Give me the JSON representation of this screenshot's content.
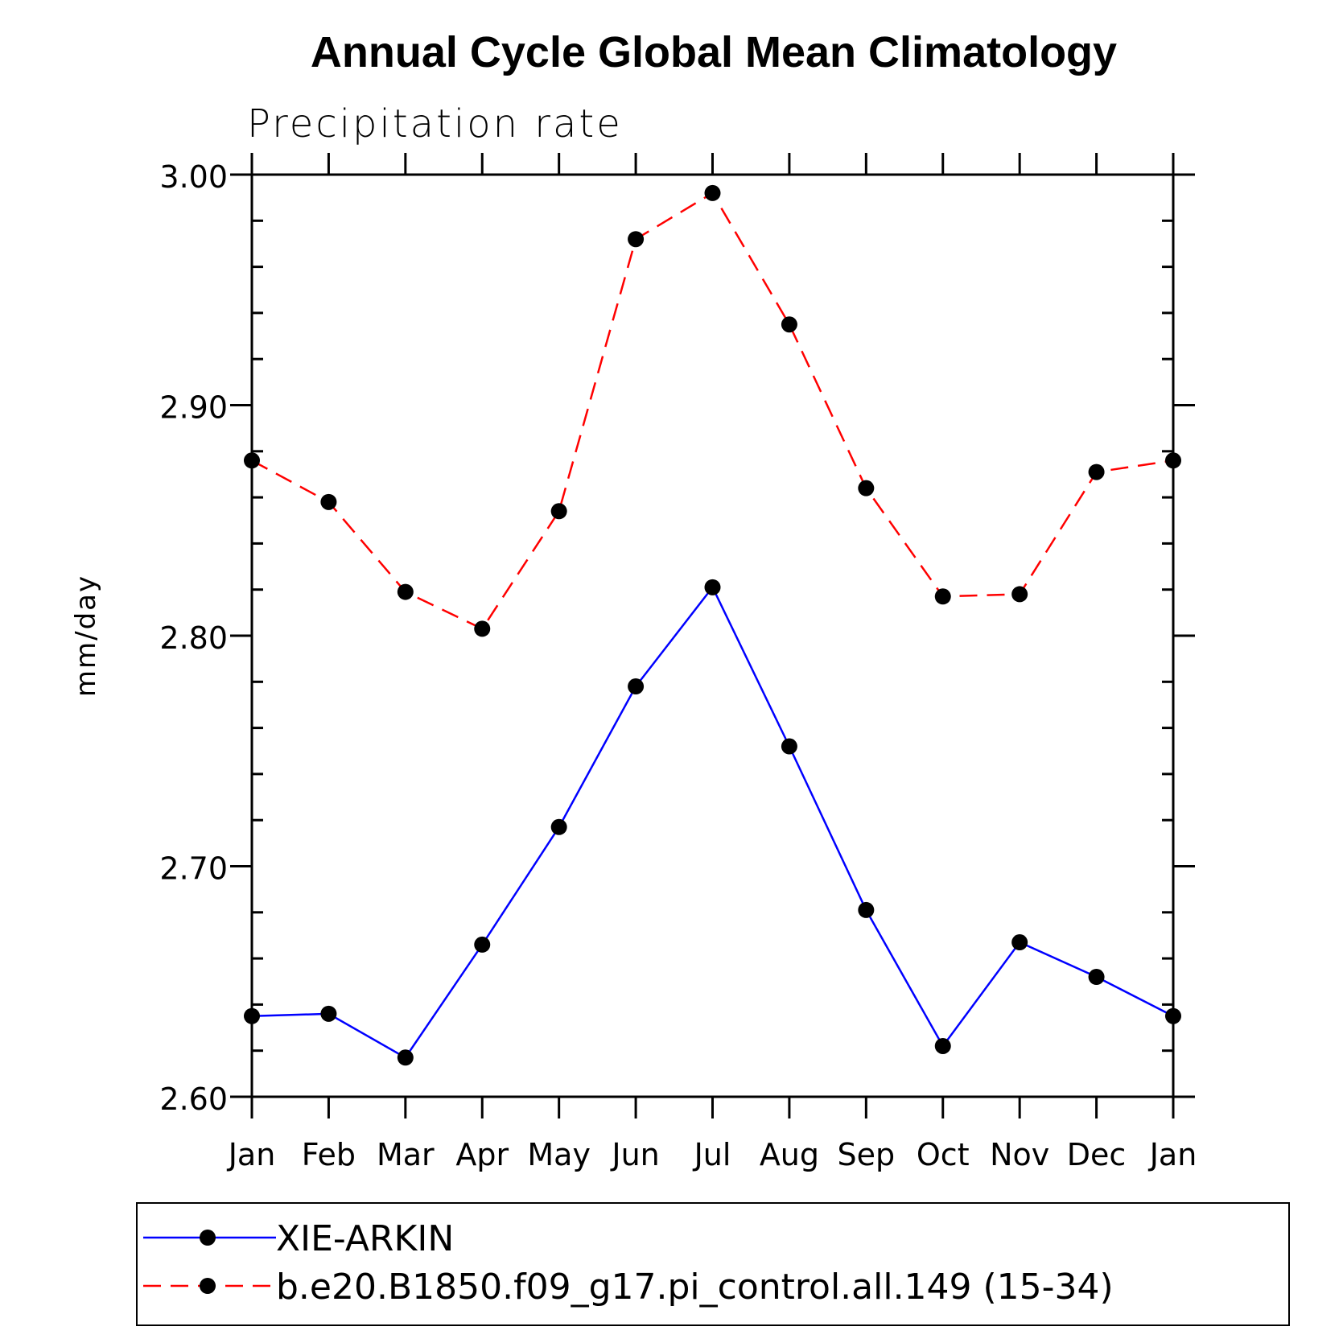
{
  "chart_data": {
    "type": "line",
    "title": "Annual Cycle Global Mean Climatology",
    "subtitle": "Precipitation rate",
    "ylabel": "mm/day",
    "xlabel": "",
    "categories": [
      "Jan",
      "Feb",
      "Mar",
      "Apr",
      "May",
      "Jun",
      "Jul",
      "Aug",
      "Sep",
      "Oct",
      "Nov",
      "Dec",
      "Jan"
    ],
    "ylim": [
      2.6,
      3.0
    ],
    "yticks": [
      "2.60",
      "2.70",
      "2.80",
      "2.90",
      "3.00"
    ],
    "grid": false,
    "legend_position": "bottom",
    "series": [
      {
        "name": "XIE-ARKIN",
        "color": "#0000ff",
        "line_style": "solid",
        "marker": "filled-circle",
        "values": [
          2.635,
          2.636,
          2.617,
          2.666,
          2.717,
          2.778,
          2.821,
          2.752,
          2.681,
          2.622,
          2.667,
          2.652,
          2.635
        ]
      },
      {
        "name": "b.e20.B1850.f09_g17.pi_control.all.149 (15-34)",
        "color": "#ff0000",
        "line_style": "dashed",
        "marker": "filled-circle",
        "values": [
          2.876,
          2.858,
          2.819,
          2.803,
          2.854,
          2.972,
          2.992,
          2.935,
          2.864,
          2.817,
          2.818,
          2.871,
          2.876
        ]
      }
    ]
  }
}
